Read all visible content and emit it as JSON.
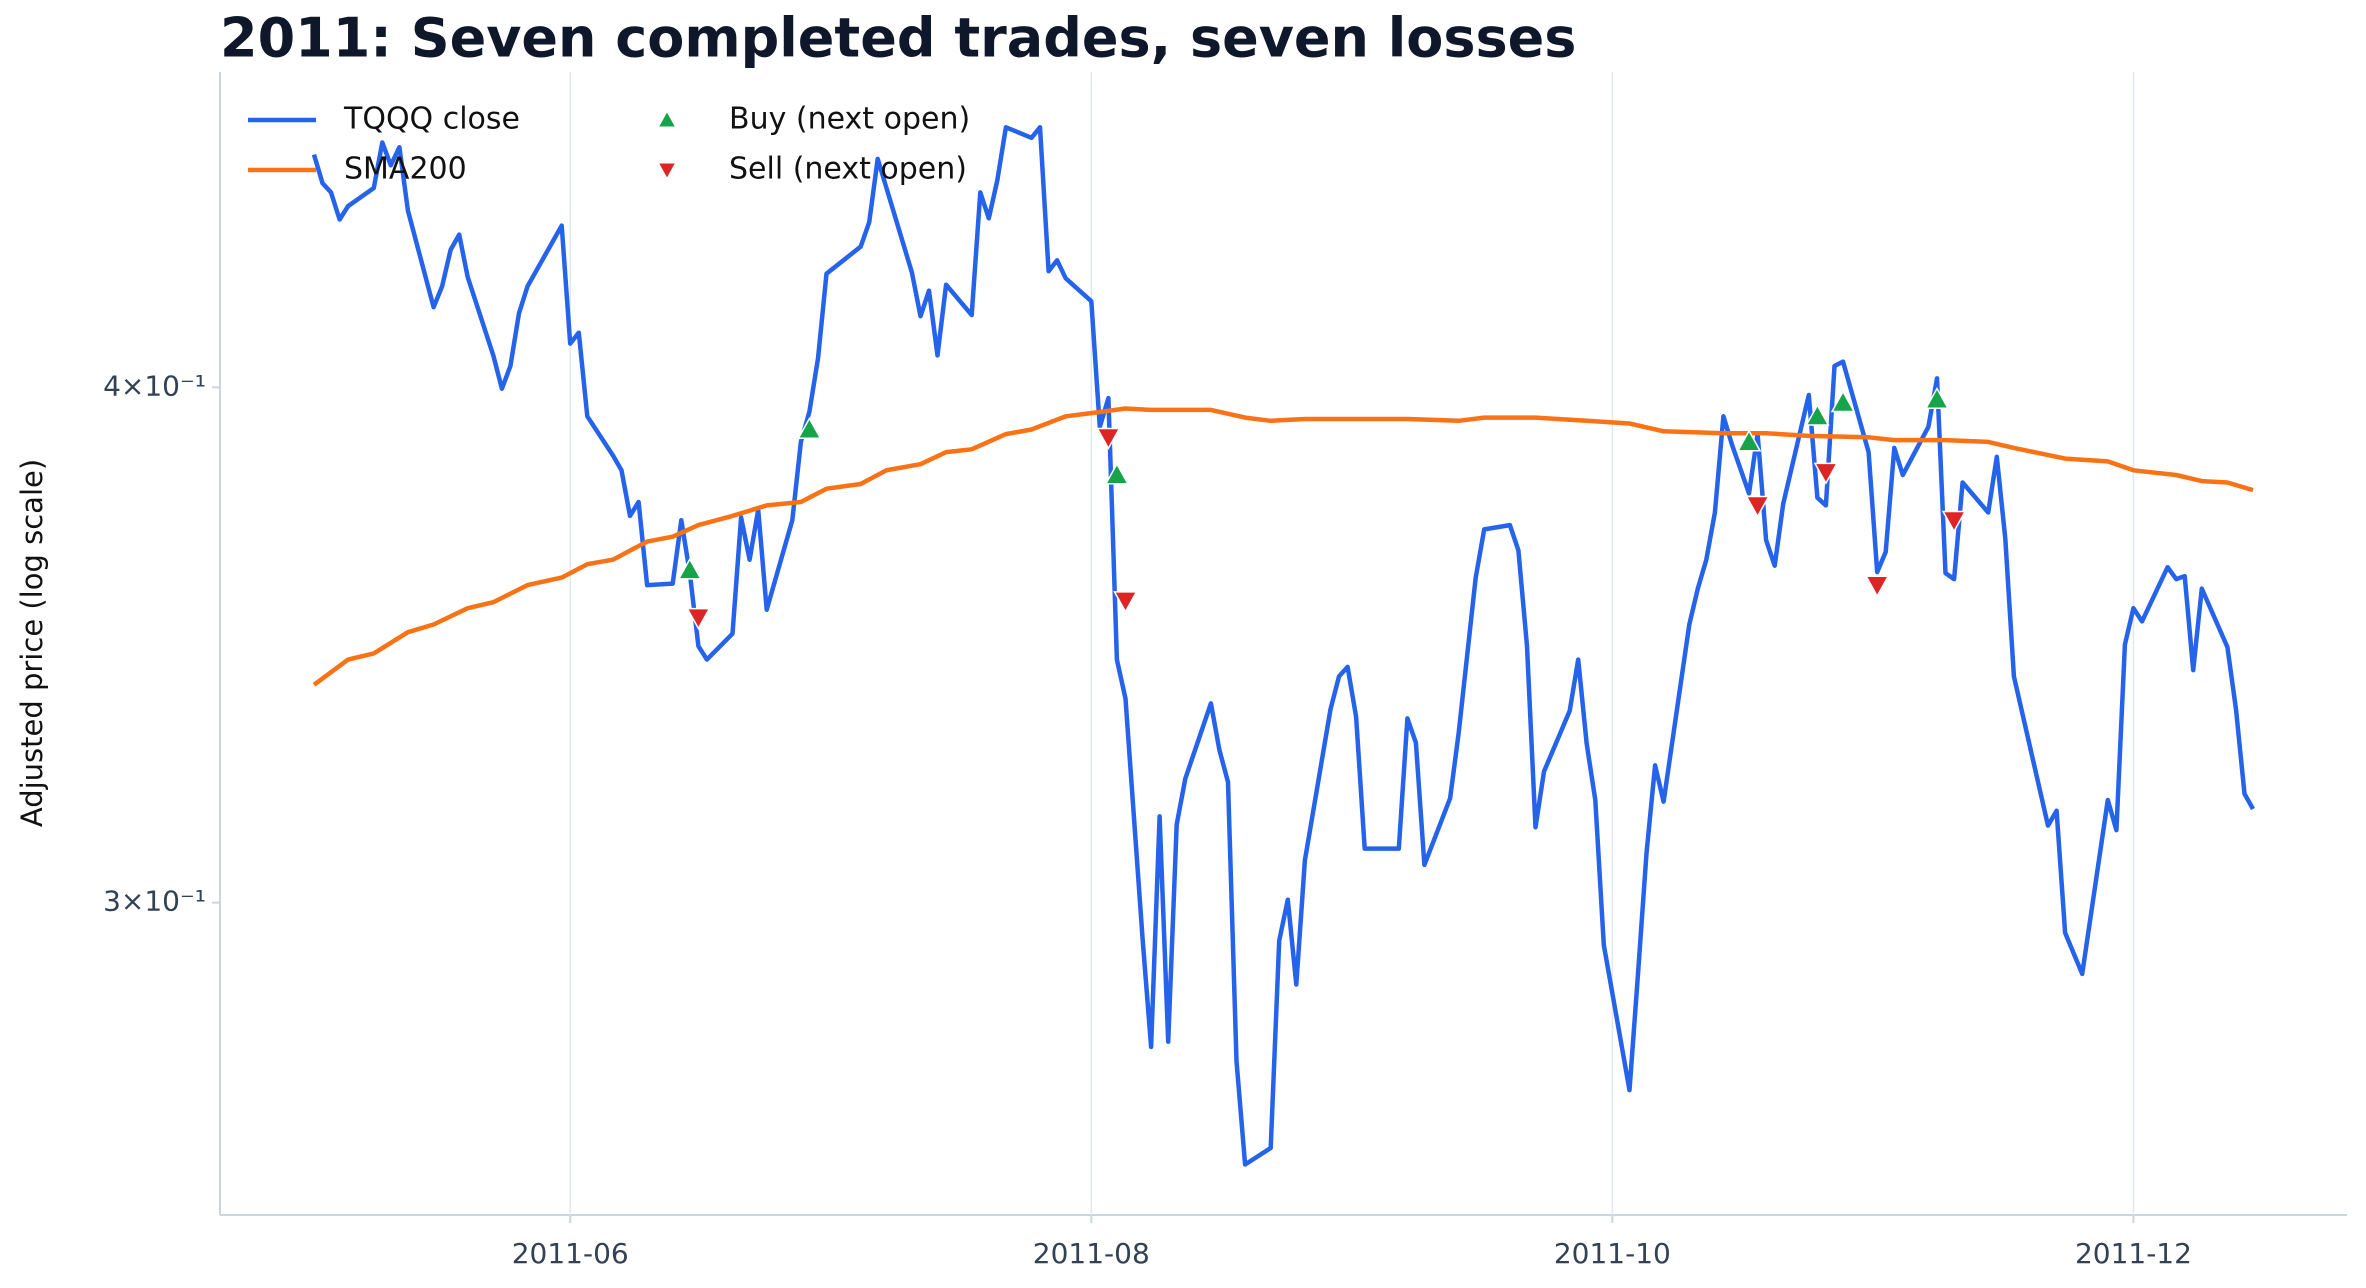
{
  "chart_data": {
    "type": "line",
    "title": "2011: Seven completed trades, seven losses",
    "y_label": "Adjusted price (log scale)",
    "log_y": true,
    "ylim": [
      0.252,
      0.477
    ],
    "yticks": [
      {
        "value": 0.3,
        "label": "3×10⁻¹"
      },
      {
        "value": 0.4,
        "label": "4×10⁻¹"
      }
    ],
    "xlim": [
      "2011-04-21",
      "2011-12-26"
    ],
    "xticks": [
      {
        "value": "2011-06-01",
        "label": "2011-06"
      },
      {
        "value": "2011-08-01",
        "label": "2011-08"
      },
      {
        "value": "2011-10-01",
        "label": "2011-10"
      },
      {
        "value": "2011-12-01",
        "label": "2011-12"
      }
    ],
    "grid": "x",
    "legend": "upper left",
    "series": [
      {
        "name": "TQQQ close",
        "color": "#2563eb",
        "type": "line",
        "x": [
          "2011-05-02",
          "2011-05-03",
          "2011-05-04",
          "2011-05-05",
          "2011-05-06",
          "2011-05-09",
          "2011-05-10",
          "2011-05-11",
          "2011-05-12",
          "2011-05-13",
          "2011-05-16",
          "2011-05-17",
          "2011-05-18",
          "2011-05-19",
          "2011-05-20",
          "2011-05-23",
          "2011-05-24",
          "2011-05-25",
          "2011-05-26",
          "2011-05-27",
          "2011-05-31",
          "2011-06-01",
          "2011-06-02",
          "2011-06-03",
          "2011-06-06",
          "2011-06-07",
          "2011-06-08",
          "2011-06-09",
          "2011-06-10",
          "2011-06-13",
          "2011-06-14",
          "2011-06-15",
          "2011-06-16",
          "2011-06-17",
          "2011-06-20",
          "2011-06-21",
          "2011-06-22",
          "2011-06-23",
          "2011-06-24",
          "2011-06-27",
          "2011-06-28",
          "2011-06-29",
          "2011-06-30",
          "2011-07-01",
          "2011-07-05",
          "2011-07-06",
          "2011-07-07",
          "2011-07-11",
          "2011-07-12",
          "2011-07-13",
          "2011-07-14",
          "2011-07-15",
          "2011-07-18",
          "2011-07-19",
          "2011-07-20",
          "2011-07-21",
          "2011-07-22",
          "2011-07-25",
          "2011-07-26",
          "2011-07-27",
          "2011-07-28",
          "2011-07-29",
          "2011-08-01",
          "2011-08-02",
          "2011-08-03",
          "2011-08-04",
          "2011-08-05",
          "2011-08-07",
          "2011-08-08",
          "2011-08-09",
          "2011-08-10",
          "2011-08-11",
          "2011-08-12",
          "2011-08-15",
          "2011-08-16",
          "2011-08-17",
          "2011-08-18",
          "2011-08-19",
          "2011-08-22",
          "2011-08-23",
          "2011-08-24",
          "2011-08-25",
          "2011-08-26",
          "2011-08-29",
          "2011-08-30",
          "2011-08-31",
          "2011-09-01",
          "2011-09-02",
          "2011-09-06",
          "2011-09-07",
          "2011-09-08",
          "2011-09-09",
          "2011-09-12",
          "2011-09-13",
          "2011-09-15",
          "2011-09-16",
          "2011-09-19",
          "2011-09-20",
          "2011-09-21",
          "2011-09-22",
          "2011-09-23",
          "2011-09-26",
          "2011-09-27",
          "2011-09-28",
          "2011-09-29",
          "2011-09-30",
          "2011-10-03",
          "2011-10-04",
          "2011-10-05",
          "2011-10-06",
          "2011-10-07",
          "2011-10-10",
          "2011-10-11",
          "2011-10-12",
          "2011-10-13",
          "2011-10-14",
          "2011-10-15",
          "2011-10-17",
          "2011-10-18",
          "2011-10-19",
          "2011-10-20",
          "2011-10-21",
          "2011-10-24",
          "2011-10-25",
          "2011-10-26",
          "2011-10-27",
          "2011-10-28",
          "2011-10-31",
          "2011-11-01",
          "2011-11-02",
          "2011-11-03",
          "2011-11-04",
          "2011-11-07",
          "2011-11-08",
          "2011-11-09",
          "2011-11-10",
          "2011-11-11",
          "2011-11-14",
          "2011-11-15",
          "2011-11-16",
          "2011-11-17",
          "2011-11-21",
          "2011-11-22",
          "2011-11-23",
          "2011-11-25",
          "2011-11-28",
          "2011-11-29",
          "2011-11-30",
          "2011-12-01",
          "2011-12-02",
          "2011-12-05",
          "2011-12-06",
          "2011-12-07",
          "2011-12-08",
          "2011-12-09",
          "2011-12-12",
          "2011-12-13",
          "2011-12-14",
          "2011-12-15"
        ],
        "values": [
          0.4555,
          0.4483,
          0.446,
          0.4393,
          0.4426,
          0.4471,
          0.4586,
          0.4528,
          0.4574,
          0.4415,
          0.4183,
          0.4232,
          0.4319,
          0.4356,
          0.4254,
          0.4072,
          0.3997,
          0.4048,
          0.4169,
          0.4232,
          0.4378,
          0.4099,
          0.4124,
          0.3936,
          0.3851,
          0.3819,
          0.3723,
          0.3752,
          0.3582,
          0.3585,
          0.3714,
          0.3606,
          0.3462,
          0.3436,
          0.3486,
          0.372,
          0.3633,
          0.3736,
          0.3533,
          0.3714,
          0.388,
          0.3946,
          0.4065,
          0.4262,
          0.4327,
          0.4386,
          0.4544,
          0.4265,
          0.4162,
          0.4222,
          0.4072,
          0.4236,
          0.4165,
          0.446,
          0.4396,
          0.449,
          0.4625,
          0.4598,
          0.4625,
          0.4268,
          0.4294,
          0.4251,
          0.4197,
          0.3913,
          0.3976,
          0.3436,
          0.3362,
          0.294,
          0.2768,
          0.3148,
          0.2776,
          0.3134,
          0.3215,
          0.3353,
          0.3267,
          0.3209,
          0.2746,
          0.2592,
          0.2616,
          0.2937,
          0.3005,
          0.2866,
          0.3072,
          0.3342,
          0.3404,
          0.3422,
          0.3328,
          0.3092,
          0.3092,
          0.3325,
          0.328,
          0.3064,
          0.318,
          0.3297,
          0.3597,
          0.3695,
          0.3704,
          0.3652,
          0.3462,
          0.3129,
          0.3228,
          0.3339,
          0.3436,
          0.3278,
          0.3177,
          0.293,
          0.2702,
          0.2883,
          0.3084,
          0.3239,
          0.3174,
          0.3504,
          0.3575,
          0.3633,
          0.373,
          0.3936,
          0.3874,
          0.377,
          0.3897,
          0.3673,
          0.3621,
          0.3748,
          0.3983,
          0.3761,
          0.3745,
          0.4048,
          0.4058,
          0.3858,
          0.3608,
          0.3649,
          0.3867,
          0.3809,
          0.3913,
          0.402,
          0.3606,
          0.3594,
          0.3793,
          0.373,
          0.3848,
          0.3676,
          0.3404,
          0.3132,
          0.3158,
          0.295,
          0.2883,
          0.3177,
          0.3124,
          0.3465,
          0.3536,
          0.351,
          0.3618,
          0.3594,
          0.36,
          0.3416,
          0.3575,
          0.346,
          0.3342,
          0.3188,
          0.3161
        ]
      },
      {
        "name": "SMA200",
        "color": "#f97316",
        "type": "line",
        "x": [
          "2011-05-02",
          "2011-05-06",
          "2011-05-09",
          "2011-05-13",
          "2011-05-16",
          "2011-05-20",
          "2011-05-23",
          "2011-05-27",
          "2011-05-31",
          "2011-06-03",
          "2011-06-06",
          "2011-06-10",
          "2011-06-13",
          "2011-06-16",
          "2011-06-20",
          "2011-06-24",
          "2011-06-28",
          "2011-07-01",
          "2011-07-05",
          "2011-07-08",
          "2011-07-12",
          "2011-07-15",
          "2011-07-18",
          "2011-07-22",
          "2011-07-25",
          "2011-07-29",
          "2011-08-01",
          "2011-08-05",
          "2011-08-08",
          "2011-08-15",
          "2011-08-19",
          "2011-08-22",
          "2011-08-26",
          "2011-08-29",
          "2011-09-07",
          "2011-09-13",
          "2011-09-16",
          "2011-09-22",
          "2011-09-28",
          "2011-10-03",
          "2011-10-07",
          "2011-10-14",
          "2011-10-19",
          "2011-10-24",
          "2011-10-31",
          "2011-11-03",
          "2011-11-09",
          "2011-11-14",
          "2011-11-17",
          "2011-11-23",
          "2011-11-28",
          "2011-12-01",
          "2011-12-06",
          "2011-12-09",
          "2011-12-12",
          "2011-12-15"
        ],
        "values": [
          0.3388,
          0.3436,
          0.3448,
          0.3489,
          0.3504,
          0.3536,
          0.3548,
          0.3582,
          0.3597,
          0.3624,
          0.3633,
          0.367,
          0.368,
          0.3704,
          0.3723,
          0.3745,
          0.3752,
          0.378,
          0.379,
          0.3819,
          0.3832,
          0.3858,
          0.3864,
          0.3897,
          0.3907,
          0.3936,
          0.3943,
          0.3953,
          0.395,
          0.395,
          0.3933,
          0.3926,
          0.393,
          0.393,
          0.393,
          0.3926,
          0.3933,
          0.3933,
          0.3926,
          0.392,
          0.3903,
          0.3899,
          0.3899,
          0.3893,
          0.389,
          0.3884,
          0.3884,
          0.388,
          0.3867,
          0.3844,
          0.3838,
          0.3819,
          0.3809,
          0.3796,
          0.3793,
          0.3777
        ]
      },
      {
        "name": "Buy (next open)",
        "color": "#16a34a",
        "type": "scatter",
        "marker": "triangle-up",
        "x": [
          "2011-06-15",
          "2011-06-29",
          "2011-08-04",
          "2011-10-17",
          "2011-10-25",
          "2011-10-28",
          "2011-11-08"
        ],
        "values": [
          0.3612,
          0.3907,
          0.3809,
          0.388,
          0.3936,
          0.3966,
          0.3973
        ]
      },
      {
        "name": "Sell (next open)",
        "color": "#dc2626",
        "type": "scatter",
        "marker": "triangle-down",
        "x": [
          "2011-06-16",
          "2011-08-03",
          "2011-08-05",
          "2011-10-18",
          "2011-10-26",
          "2011-11-01",
          "2011-11-10"
        ],
        "values": [
          0.3518,
          0.389,
          0.3551,
          0.3745,
          0.3815,
          0.3582,
          0.3714
        ]
      }
    ]
  }
}
